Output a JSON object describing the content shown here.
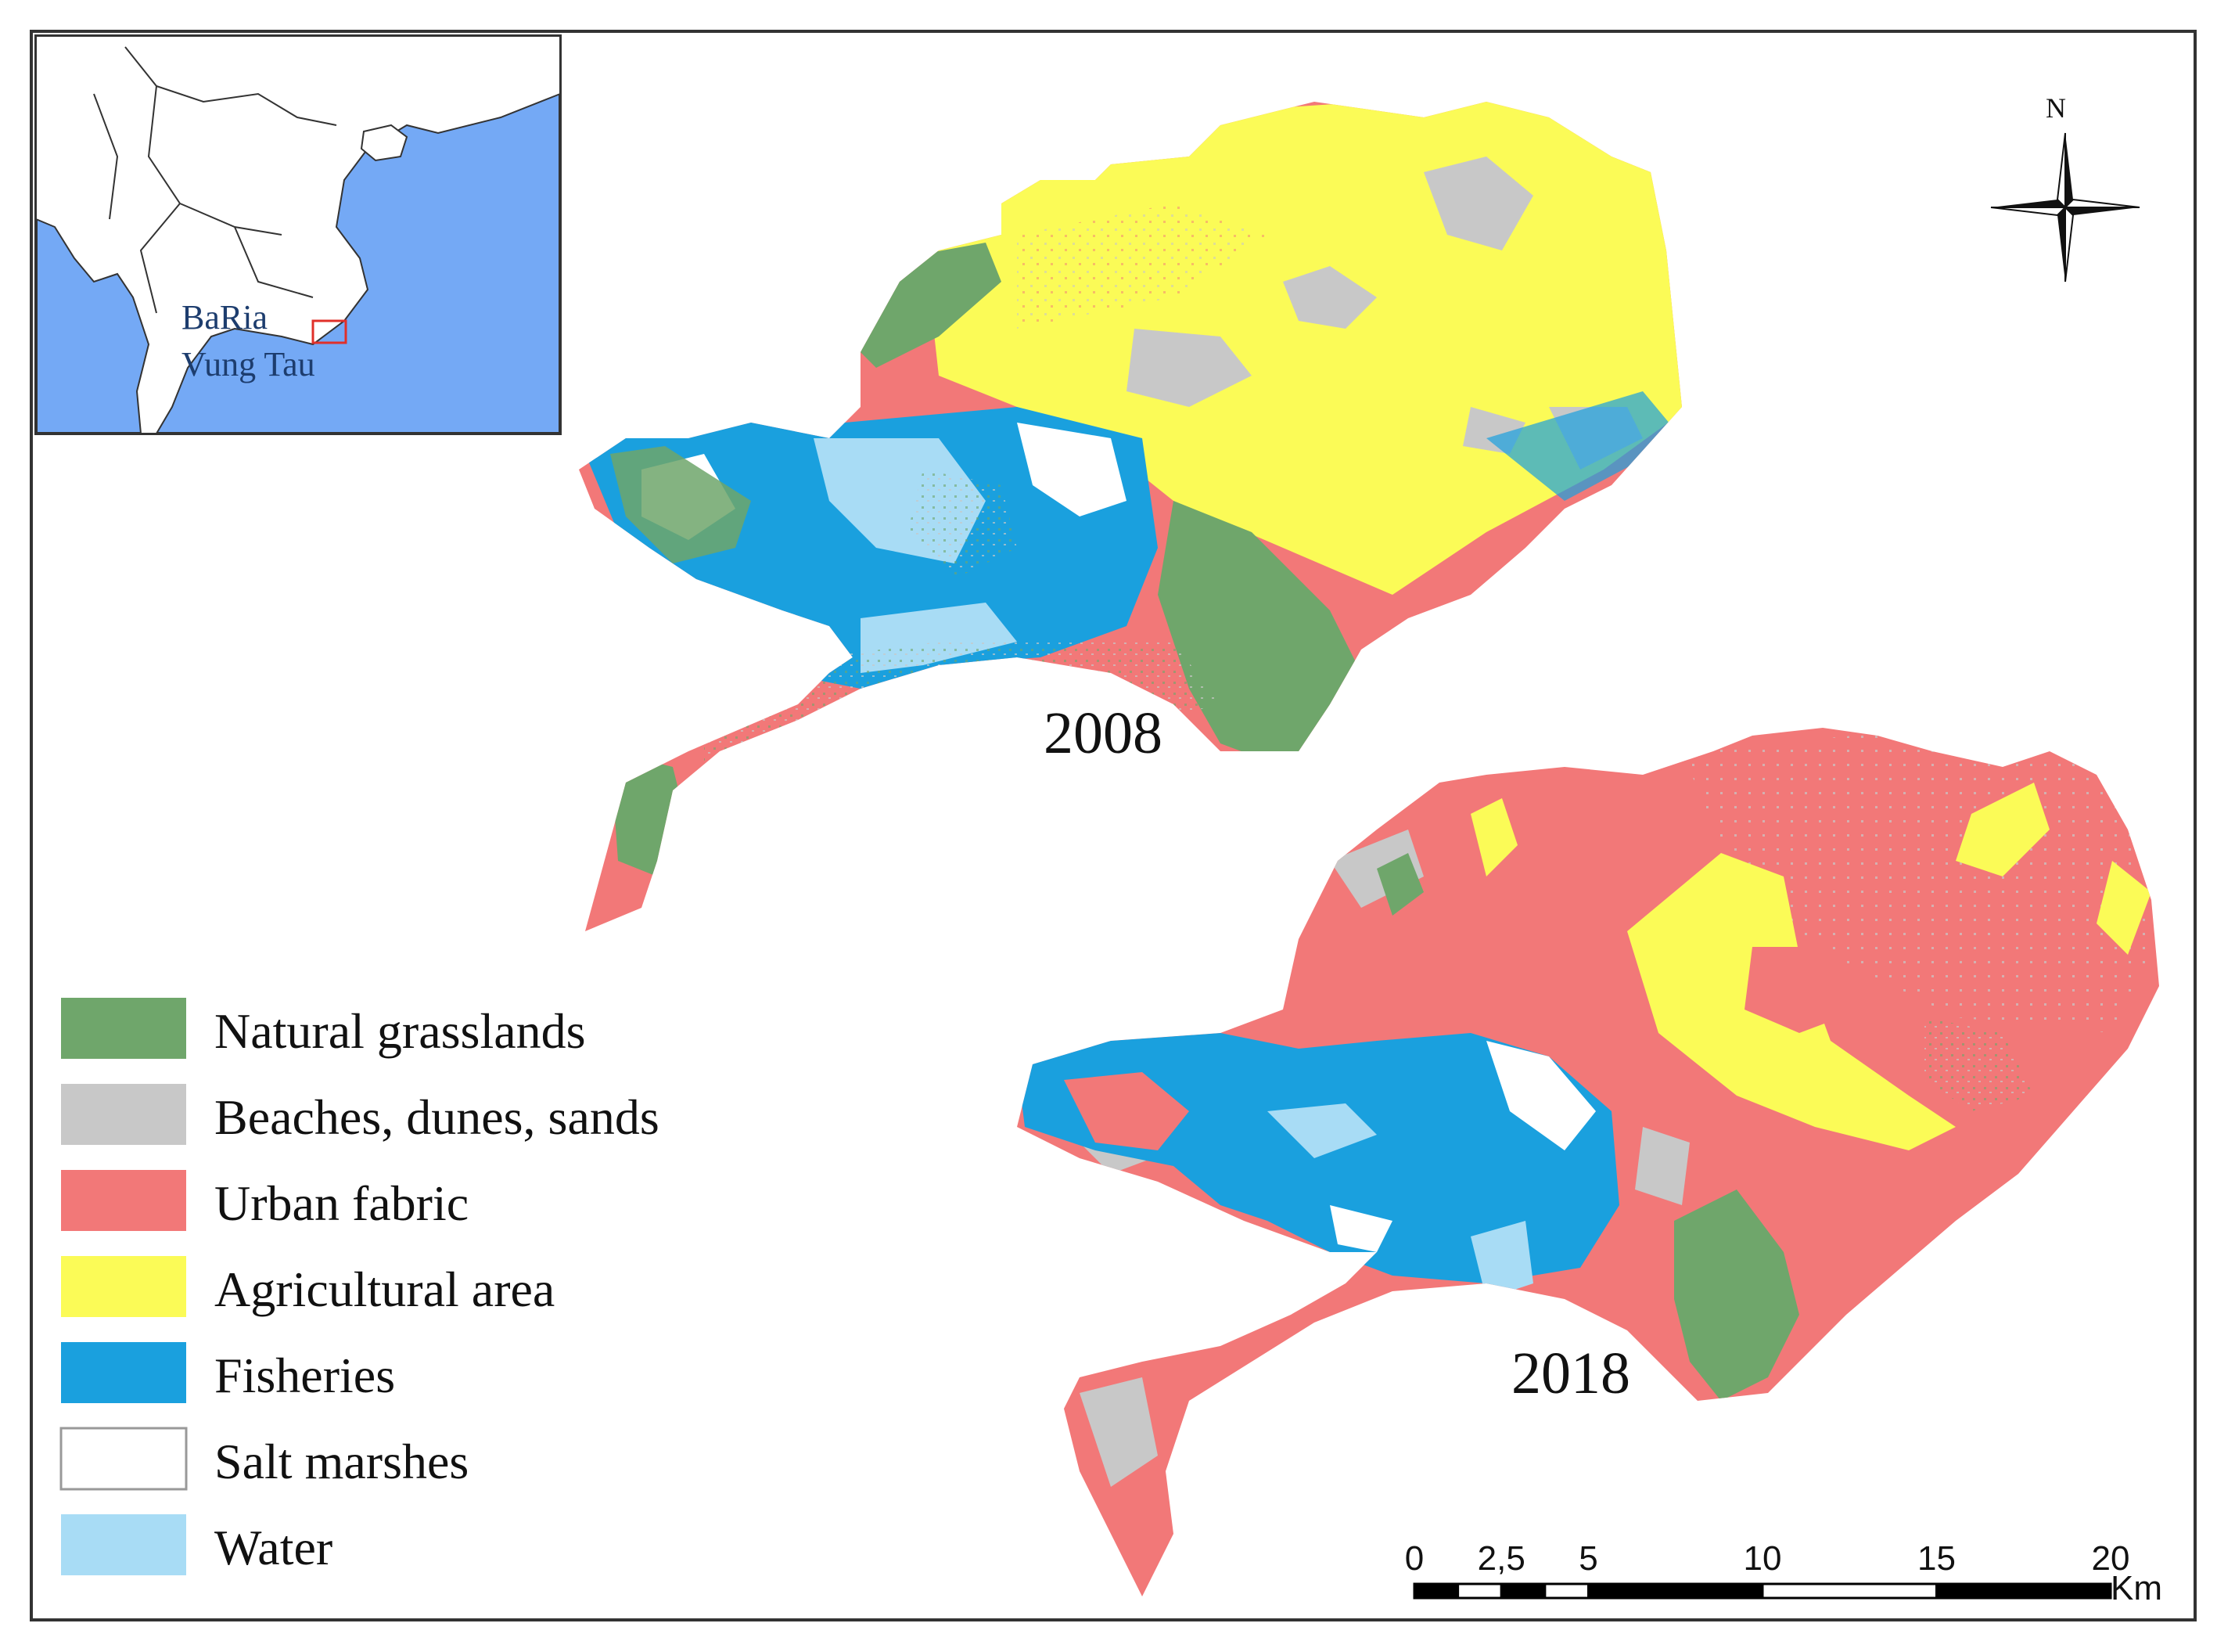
{
  "inset": {
    "label_line1": "BaRia",
    "label_line2": "Vung Tau",
    "sea_color": "#74a9f5",
    "highlight_color": "#e0302a"
  },
  "north_arrow": {
    "label": "N"
  },
  "maps": [
    {
      "year": "2008"
    },
    {
      "year": "2018"
    }
  ],
  "legend": [
    {
      "label": "Natural grasslands",
      "color": "#6fa66b"
    },
    {
      "label": "Beaches, dunes, sands",
      "color": "#c8c8c8"
    },
    {
      "label": "Urban fabric",
      "color": "#f27878"
    },
    {
      "label": "Agricultural area",
      "color": "#fbfb57"
    },
    {
      "label": "Fisheries",
      "color": "#1aa0de"
    },
    {
      "label": "Salt marshes",
      "color": "#ffffff"
    },
    {
      "label": "Water",
      "color": "#a8dcf5"
    }
  ],
  "scale_bar": {
    "ticks": [
      "0",
      "2,5",
      "5",
      "10",
      "15",
      "20"
    ],
    "tick_values": [
      0,
      2.5,
      5,
      10,
      15,
      20
    ],
    "unit": "Km"
  }
}
